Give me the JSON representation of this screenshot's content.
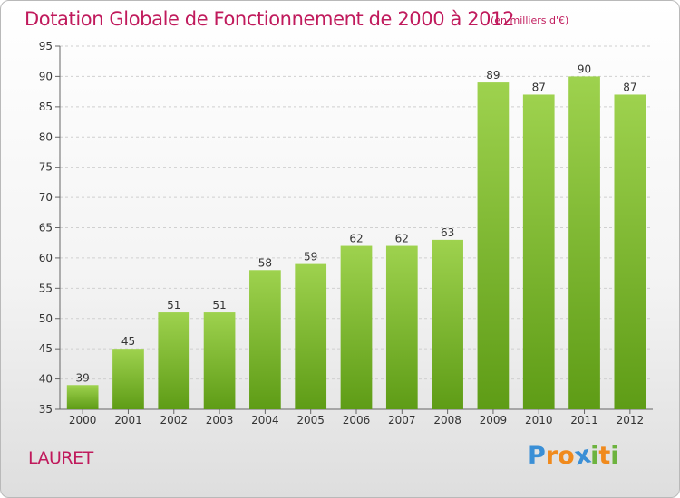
{
  "header": {
    "title": "Dotation Globale de Fonctionnement de 2000 à 2012",
    "subtitle": "(en milliers d'€)"
  },
  "footer": {
    "place": "LAURET",
    "logo": "Proxiti",
    "logo_letters": [
      {
        "ch": "P",
        "color": "#3a8fd6"
      },
      {
        "ch": "r",
        "color": "#f08a1d"
      },
      {
        "ch": "o",
        "color": "#f08a1d"
      },
      {
        "ch": "x",
        "color": "#3a8fd6"
      },
      {
        "ch": "i",
        "color": "#6db33f"
      },
      {
        "ch": "t",
        "color": "#f08a1d"
      },
      {
        "ch": "i",
        "color": "#6db33f"
      }
    ]
  },
  "chart_data": {
    "type": "bar",
    "title": "Dotation Globale de Fonctionnement de 2000 à 2012",
    "subtitle": "(en milliers d'€)",
    "categories": [
      "2000",
      "2001",
      "2002",
      "2003",
      "2004",
      "2005",
      "2006",
      "2007",
      "2008",
      "2009",
      "2010",
      "2011",
      "2012"
    ],
    "values": [
      39,
      45,
      51,
      51,
      58,
      59,
      62,
      62,
      63,
      89,
      87,
      90,
      87
    ],
    "ylim": [
      35,
      95
    ],
    "yticks": [
      35,
      40,
      45,
      50,
      55,
      60,
      65,
      70,
      75,
      80,
      85,
      90,
      95
    ],
    "grid": true,
    "colors": {
      "bar_top": "#9ed24e",
      "bar_bottom": "#5e9c16",
      "grid": "#d0d0d0",
      "title": "#c01a5c",
      "text": "#333333"
    }
  }
}
